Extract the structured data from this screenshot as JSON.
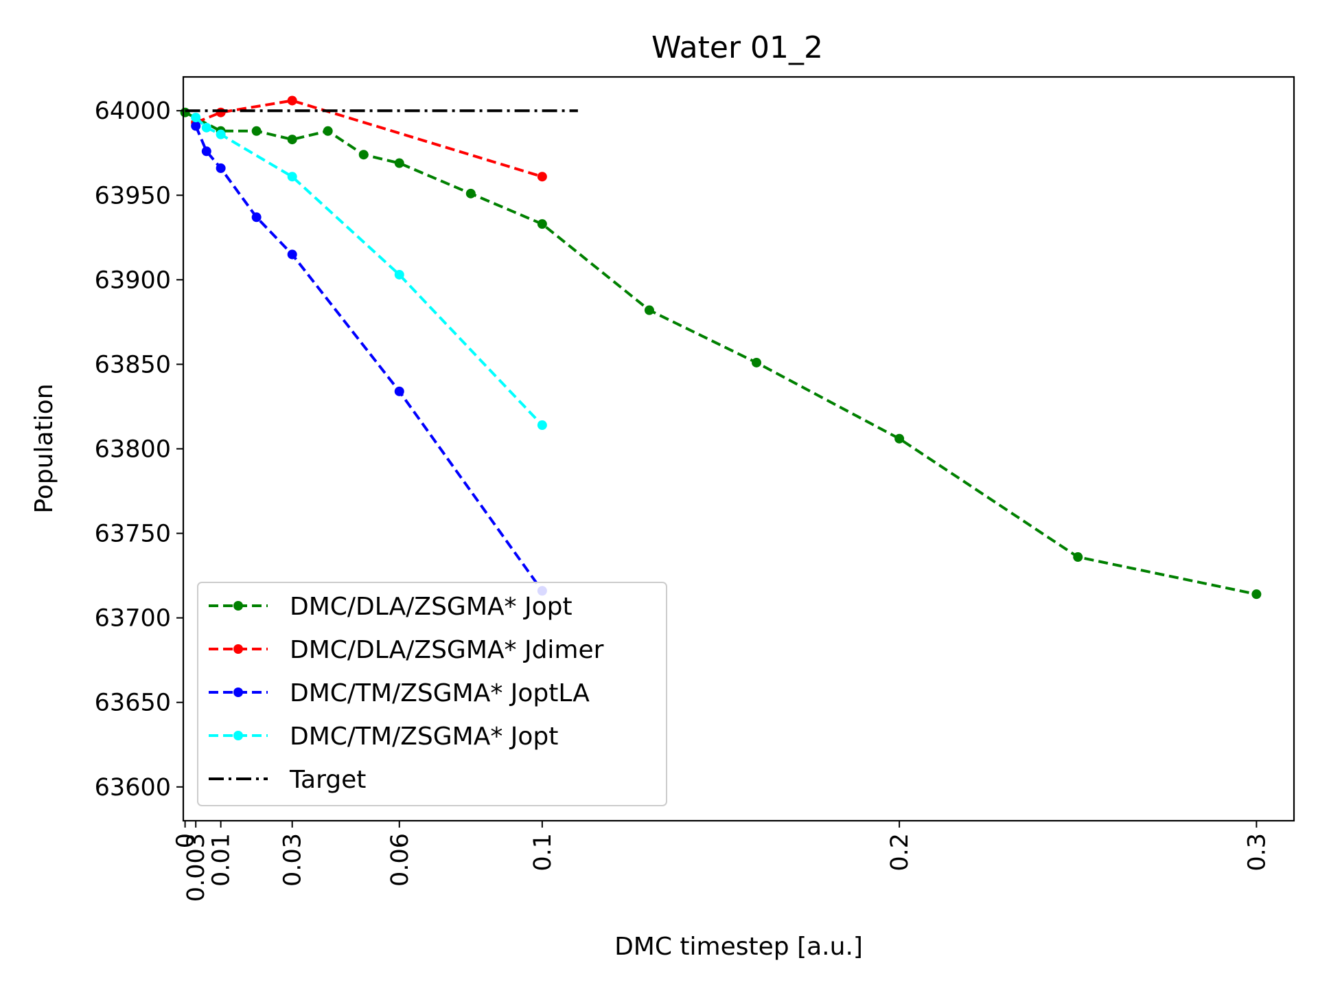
{
  "chart_data": {
    "type": "line",
    "title": "Water 01_2",
    "xlabel": "DMC timestep [a.u.]",
    "ylabel": "Population",
    "xlim": [
      -0.0005,
      0.3105
    ],
    "ylim": [
      63580,
      64020
    ],
    "x_ticks": [
      {
        "value": 0,
        "label": "0"
      },
      {
        "value": 0.003,
        "label": "0.003"
      },
      {
        "value": 0.01,
        "label": "0.01"
      },
      {
        "value": 0.03,
        "label": "0.03"
      },
      {
        "value": 0.06,
        "label": "0.06"
      },
      {
        "value": 0.1,
        "label": "0.1"
      },
      {
        "value": 0.2,
        "label": "0.2"
      },
      {
        "value": 0.3,
        "label": "0.3"
      }
    ],
    "y_ticks": [
      64000,
      63950,
      63900,
      63850,
      63800,
      63750,
      63700,
      63650,
      63600
    ],
    "grid": false,
    "legend_position": "lower-left",
    "series": [
      {
        "name": "DMC/DLA/ZSGMA* Jopt",
        "color": "#008000",
        "style": "dashed",
        "x": [
          0,
          0.01,
          0.02,
          0.03,
          0.04,
          0.05,
          0.06,
          0.08,
          0.1,
          0.13,
          0.16,
          0.2,
          0.25,
          0.3
        ],
        "y": [
          63999,
          63988,
          63988,
          63983,
          63988,
          63974,
          63969,
          63951,
          63933,
          63882,
          63851,
          63806,
          63736,
          63714
        ]
      },
      {
        "name": "DMC/DLA/ZSGMA* Jdimer",
        "color": "#ff0000",
        "style": "dashed",
        "x": [
          0.003,
          0.01,
          0.03,
          0.1
        ],
        "y": [
          63993,
          63999,
          64006,
          63961
        ]
      },
      {
        "name": "DMC/TM/ZSGMA* JoptLA",
        "color": "#0000ff",
        "style": "dashed",
        "x": [
          0.003,
          0.006,
          0.01,
          0.02,
          0.03,
          0.06,
          0.1
        ],
        "y": [
          63991,
          63976,
          63966,
          63937,
          63915,
          63834,
          63716
        ]
      },
      {
        "name": "DMC/TM/ZSGMA* Jopt",
        "color": "#00ffff",
        "style": "dashed",
        "x": [
          0.003,
          0.006,
          0.01,
          0.03,
          0.06,
          0.1
        ],
        "y": [
          63996,
          63990,
          63986,
          63961,
          63903,
          63814
        ]
      },
      {
        "name": "Target",
        "color": "#000000",
        "style": "dashdot",
        "x": [
          0,
          0.11
        ],
        "y": [
          64000,
          64000
        ]
      }
    ]
  }
}
